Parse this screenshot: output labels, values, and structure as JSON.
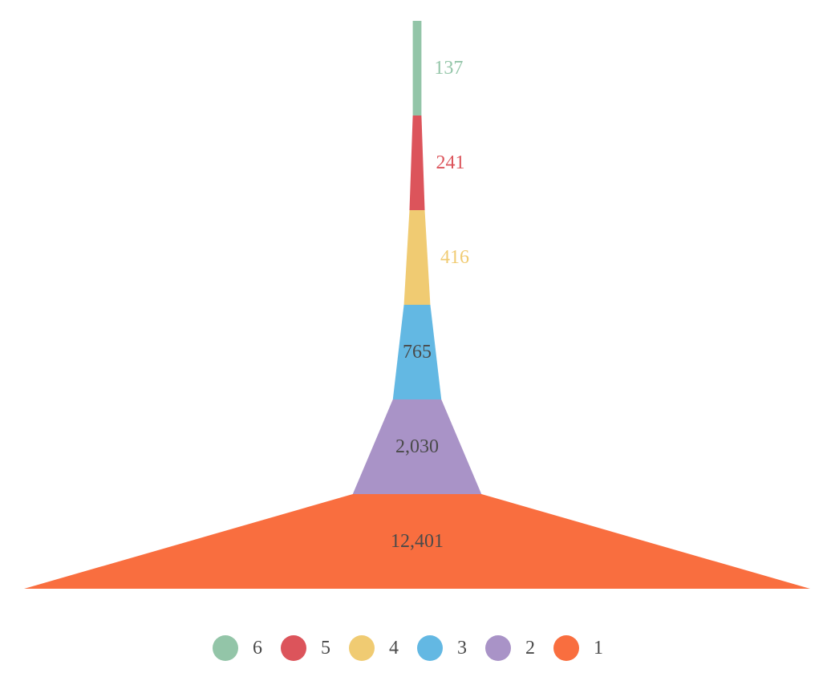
{
  "chart_data": {
    "type": "funnel",
    "title": "",
    "stages": [
      {
        "label": "6",
        "value": 137,
        "display": "137",
        "color": "#93c5a8",
        "label_position": "outside"
      },
      {
        "label": "5",
        "value": 241,
        "display": "241",
        "color": "#dc545b",
        "label_position": "outside"
      },
      {
        "label": "4",
        "value": 416,
        "display": "416",
        "color": "#f0cb72",
        "label_position": "outside"
      },
      {
        "label": "3",
        "value": 765,
        "display": "765",
        "color": "#63b8e3",
        "label_position": "inside"
      },
      {
        "label": "2",
        "value": 2030,
        "display": "2,030",
        "color": "#a993c7",
        "label_position": "inside"
      },
      {
        "label": "1",
        "value": 12401,
        "display": "12,401",
        "color": "#f96e3f",
        "label_position": "inside"
      }
    ],
    "legend": {
      "position": "bottom",
      "items": [
        "6",
        "5",
        "4",
        "3",
        "2",
        "1"
      ]
    },
    "inside_label_color": "#4a4a4a",
    "legend_text_color": "#4a4a4a"
  }
}
